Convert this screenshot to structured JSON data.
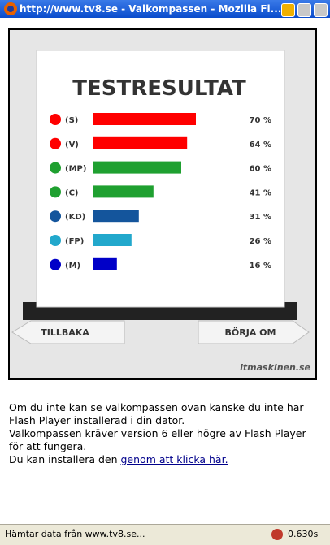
{
  "window": {
    "title": "http://www.tv8.se - Valkompassen - Mozilla Fi..."
  },
  "chart_data": {
    "type": "bar",
    "title": "TESTRESULTAT",
    "categories": [
      "(S)",
      "(V)",
      "(MP)",
      "(C)",
      "(KD)",
      "(FP)",
      "(M)"
    ],
    "values": [
      70,
      64,
      60,
      41,
      31,
      26,
      16
    ],
    "value_labels": [
      "70 %",
      "64 %",
      "60 %",
      "41 %",
      "31 %",
      "26 %",
      "16 %"
    ],
    "colors": [
      "#ff0000",
      "#ff0000",
      "#1fa030",
      "#1fa030",
      "#14559c",
      "#22a8cc",
      "#0000c8"
    ]
  },
  "buttons": {
    "back": "TILLBAKA",
    "restart": "BÖRJA OM"
  },
  "logo": "itmaskinen.se",
  "notice": {
    "lines": [
      "Om du inte kan se valkompassen ovan kanske du inte har",
      "Flash Player installerad i din dator.",
      "Valkompassen kräver version 6 eller högre av Flash Player",
      "för att fungera."
    ],
    "install_prefix": "Du kan installera den ",
    "install_link": "genom att klicka här."
  },
  "status": {
    "text": "Hämtar data från www.tv8.se...",
    "time": "0.630s"
  }
}
